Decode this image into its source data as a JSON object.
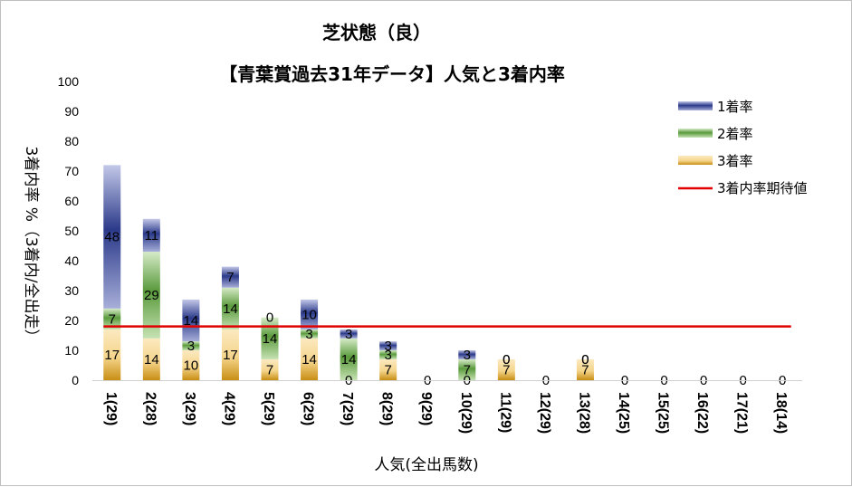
{
  "chart_data": {
    "type": "bar",
    "stacked": true,
    "title_line1": "芝状態（良）",
    "title_line2": "【青葉賞過去31年データ】人気と3着内率",
    "xlabel": "人気(全出馬数)",
    "ylabel": "3着内率 %（3着内/全出走）",
    "ylim": [
      0,
      100
    ],
    "yticks": [
      0,
      10,
      20,
      30,
      40,
      50,
      60,
      70,
      80,
      90,
      100
    ],
    "categories": [
      "1(29)",
      "2(28)",
      "3(29)",
      "4(29)",
      "5(29)",
      "6(29)",
      "7(29)",
      "8(29)",
      "9(29)",
      "10(29)",
      "11(29)",
      "12(29)",
      "13(28)",
      "14(25)",
      "15(25)",
      "16(22)",
      "17(21)",
      "18(14)"
    ],
    "series": [
      {
        "name": "3着率",
        "values": [
          17,
          14,
          10,
          17,
          7,
          14,
          0,
          7,
          0,
          0,
          7,
          0,
          7,
          0,
          0,
          0,
          0,
          0
        ],
        "color": "#e8b430"
      },
      {
        "name": "2着率",
        "values": [
          7,
          29,
          3,
          14,
          14,
          3,
          14,
          3,
          0,
          7,
          0,
          0,
          0,
          0,
          0,
          0,
          0,
          0
        ],
        "color": "#5a9a3c"
      },
      {
        "name": "1着率",
        "values": [
          48,
          11,
          14,
          7,
          0,
          10,
          3,
          3,
          0,
          3,
          0,
          0,
          0,
          0,
          0,
          0,
          0,
          0
        ],
        "color": "#2b3a8a"
      }
    ],
    "label_order": [
      "3着率",
      "2着率",
      "1着率"
    ],
    "reference_line": {
      "name": "3着内率期待値",
      "value": 18,
      "color": "#e00000"
    },
    "legend_position": "top-right",
    "grid": false
  }
}
